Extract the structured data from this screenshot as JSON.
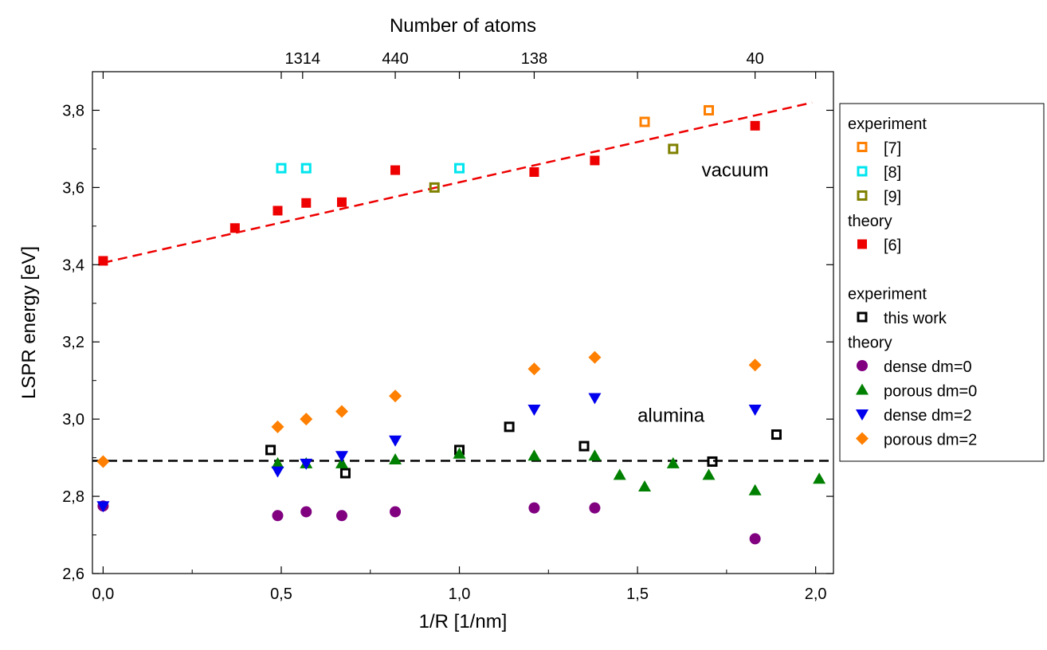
{
  "chart_data": {
    "type": "scatter",
    "title": "",
    "xlabel": "1/R [1/nm]",
    "ylabel": "LSPR energy [eV]",
    "top_xlabel": "Number of atoms",
    "xlim": [
      -0.03,
      2.05
    ],
    "ylim": [
      2.6,
      3.9
    ],
    "x_ticks": [
      {
        "value": 0.0,
        "label": "0,0"
      },
      {
        "value": 0.5,
        "label": "0,5"
      },
      {
        "value": 1.0,
        "label": "1,0"
      },
      {
        "value": 1.5,
        "label": "1,5"
      },
      {
        "value": 2.0,
        "label": "2,0"
      }
    ],
    "y_ticks": [
      {
        "value": 2.6,
        "label": "2,6"
      },
      {
        "value": 2.8,
        "label": "2,8"
      },
      {
        "value": 3.0,
        "label": "3,0"
      },
      {
        "value": 3.2,
        "label": "3,2"
      },
      {
        "value": 3.4,
        "label": "3,4"
      },
      {
        "value": 3.6,
        "label": "3,6"
      },
      {
        "value": 3.8,
        "label": "3,8"
      }
    ],
    "top_ticks": [
      {
        "value": 0.56,
        "label": "1314"
      },
      {
        "value": 0.82,
        "label": "440"
      },
      {
        "value": 1.21,
        "label": "138"
      },
      {
        "value": 1.83,
        "label": "40"
      }
    ],
    "legend_position": "right",
    "legend_groups": [
      {
        "header": "experiment",
        "series": [
          0,
          1,
          2
        ]
      },
      {
        "header": "theory",
        "series": [
          3
        ]
      },
      {
        "header": "experiment",
        "series": [
          4
        ]
      },
      {
        "header": "theory",
        "series": [
          5,
          6,
          7,
          8
        ]
      }
    ],
    "series": [
      {
        "name": "[7]",
        "marker": "open-square",
        "color": "#ff7f00",
        "points": [
          [
            1.52,
            3.77
          ],
          [
            1.7,
            3.8
          ]
        ]
      },
      {
        "name": "[8]",
        "marker": "open-square",
        "color": "#00e5ee",
        "points": [
          [
            0.5,
            3.65
          ],
          [
            0.57,
            3.65
          ],
          [
            1.0,
            3.65
          ]
        ]
      },
      {
        "name": "[9]",
        "marker": "open-square",
        "color": "#808000",
        "points": [
          [
            0.93,
            3.6
          ],
          [
            1.6,
            3.7
          ]
        ]
      },
      {
        "name": "[6]",
        "marker": "square",
        "color": "#ee0000",
        "points": [
          [
            0.0,
            3.41
          ],
          [
            0.37,
            3.495
          ],
          [
            0.49,
            3.54
          ],
          [
            0.57,
            3.56
          ],
          [
            0.67,
            3.562
          ],
          [
            0.82,
            3.645
          ],
          [
            1.21,
            3.64
          ],
          [
            1.38,
            3.67
          ],
          [
            1.83,
            3.76
          ]
        ]
      },
      {
        "name": "this work",
        "marker": "open-square",
        "color": "#000000",
        "points": [
          [
            0.47,
            2.92
          ],
          [
            0.68,
            2.86
          ],
          [
            1.0,
            2.92
          ],
          [
            1.14,
            2.98
          ],
          [
            1.35,
            2.93
          ],
          [
            1.71,
            2.89
          ],
          [
            1.89,
            2.96
          ]
        ]
      },
      {
        "name": "dense dm=0",
        "marker": "circle",
        "color": "#800080",
        "points": [
          [
            0.0,
            2.775
          ],
          [
            0.49,
            2.75
          ],
          [
            0.57,
            2.76
          ],
          [
            0.67,
            2.75
          ],
          [
            0.82,
            2.76
          ],
          [
            1.21,
            2.77
          ],
          [
            1.38,
            2.77
          ],
          [
            1.83,
            2.69
          ]
        ]
      },
      {
        "name": "porous dm=0",
        "marker": "triangle-up",
        "color": "#008000",
        "points": [
          [
            0.49,
            2.885
          ],
          [
            0.57,
            2.885
          ],
          [
            0.67,
            2.885
          ],
          [
            0.82,
            2.895
          ],
          [
            1.0,
            2.91
          ],
          [
            1.21,
            2.905
          ],
          [
            1.38,
            2.905
          ],
          [
            1.45,
            2.855
          ],
          [
            1.52,
            2.825
          ],
          [
            1.6,
            2.885
          ],
          [
            1.7,
            2.855
          ],
          [
            1.83,
            2.815
          ],
          [
            2.01,
            2.845
          ]
        ]
      },
      {
        "name": "dense dm=2",
        "marker": "triangle-down",
        "color": "#0000ee",
        "points": [
          [
            0.0,
            2.775
          ],
          [
            0.49,
            2.865
          ],
          [
            0.57,
            2.885
          ],
          [
            0.67,
            2.905
          ],
          [
            0.82,
            2.945
          ],
          [
            1.21,
            3.025
          ],
          [
            1.38,
            3.055
          ],
          [
            1.83,
            3.025
          ]
        ]
      },
      {
        "name": "porous dm=2",
        "marker": "diamond",
        "color": "#ff7f00",
        "points": [
          [
            0.0,
            2.89
          ],
          [
            0.49,
            2.98
          ],
          [
            0.57,
            3.0
          ],
          [
            0.67,
            3.02
          ],
          [
            0.82,
            3.06
          ],
          [
            1.21,
            3.13
          ],
          [
            1.38,
            3.16
          ],
          [
            1.83,
            3.14
          ]
        ]
      }
    ],
    "lines": [
      {
        "label": "vacuum",
        "style": "dashed",
        "color": "#ee0000",
        "x": [
          0.0,
          1.99
        ],
        "y": [
          3.405,
          3.82
        ]
      },
      {
        "label": "alumina",
        "style": "dashed",
        "color": "#000000",
        "x": [
          -0.03,
          2.05
        ],
        "y": [
          2.892,
          2.892
        ]
      }
    ],
    "annotations": [
      {
        "text": "vacuum",
        "x": 1.68,
        "y": 3.645
      },
      {
        "text": "alumina",
        "x": 1.5,
        "y": 3.01
      }
    ]
  }
}
